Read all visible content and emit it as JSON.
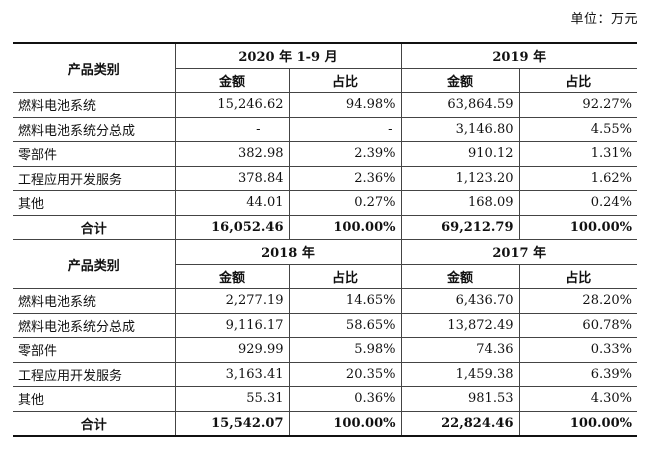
{
  "unit_label": "单位：万元",
  "category_header": "产品类别",
  "amount_header": "金额",
  "ratio_header": "占比",
  "blocks": [
    {
      "periods": [
        "2020 年 1-9 月",
        "2019 年"
      ],
      "rows": [
        {
          "category": "燃料电池系统",
          "values": [
            "15,246.62",
            "94.98%",
            "63,864.59",
            "92.27%"
          ]
        },
        {
          "category": "燃料电池系统分总成",
          "values": [
            "-",
            "-",
            "3,146.80",
            "4.55%"
          ]
        },
        {
          "category": "零部件",
          "values": [
            "382.98",
            "2.39%",
            "910.12",
            "1.31%"
          ]
        },
        {
          "category": "工程应用开发服务",
          "values": [
            "378.84",
            "2.36%",
            "1,123.20",
            "1.62%"
          ]
        },
        {
          "category": "其他",
          "values": [
            "44.01",
            "0.27%",
            "168.09",
            "0.24%"
          ]
        }
      ],
      "total": {
        "category": "合计",
        "values": [
          "16,052.46",
          "100.00%",
          "69,212.79",
          "100.00%"
        ]
      }
    },
    {
      "periods": [
        "2018 年",
        "2017 年"
      ],
      "rows": [
        {
          "category": "燃料电池系统",
          "values": [
            "2,277.19",
            "14.65%",
            "6,436.70",
            "28.20%"
          ]
        },
        {
          "category": "燃料电池系统分总成",
          "values": [
            "9,116.17",
            "58.65%",
            "13,872.49",
            "60.78%"
          ]
        },
        {
          "category": "零部件",
          "values": [
            "929.99",
            "5.98%",
            "74.36",
            "0.33%"
          ]
        },
        {
          "category": "工程应用开发服务",
          "values": [
            "3,163.41",
            "20.35%",
            "1,459.38",
            "6.39%"
          ]
        },
        {
          "category": "其他",
          "values": [
            "55.31",
            "0.36%",
            "981.53",
            "4.30%"
          ]
        }
      ],
      "total": {
        "category": "合计",
        "values": [
          "15,542.07",
          "100.00%",
          "22,824.46",
          "100.00%"
        ]
      }
    }
  ]
}
